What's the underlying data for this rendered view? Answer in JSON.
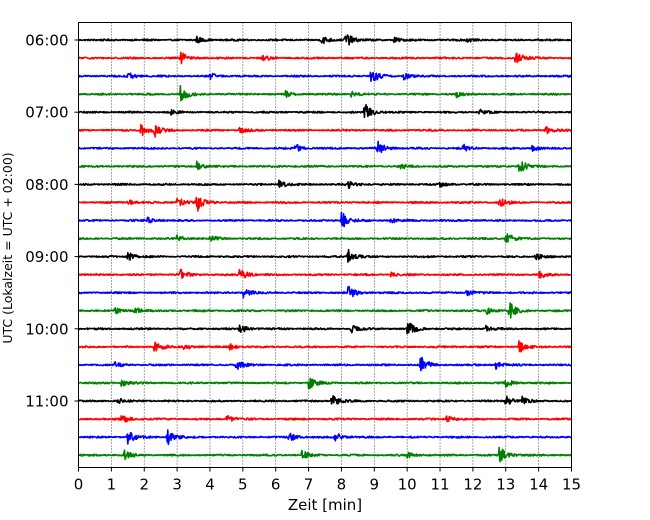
{
  "chart_data": {
    "type": "line",
    "title": "",
    "xlabel": "Zeit  [min]",
    "ylabel": "UTC (Lokalzeit = UTC + 02:00)",
    "xlim": [
      0,
      15
    ],
    "x_ticks": [
      0,
      1,
      2,
      3,
      4,
      5,
      6,
      7,
      8,
      9,
      10,
      11,
      12,
      13,
      14,
      15
    ],
    "x_tick_labels": [
      "0",
      "1",
      "2",
      "3",
      "4",
      "5",
      "6",
      "7",
      "8",
      "9",
      "10",
      "11",
      "12",
      "13",
      "14",
      "15"
    ],
    "grid": "vertical dotted lines at each minute",
    "y_tick_labels": [
      "06:00",
      "07:00",
      "08:00",
      "09:00",
      "10:00",
      "11:00"
    ],
    "trace_interval_min": 15,
    "trace_start": "06:00",
    "trace_colors": [
      "#000000",
      "#ff0000",
      "#0000ff",
      "#008000"
    ],
    "series": [
      {
        "start": "06:00",
        "color": "#000000",
        "events": [
          [
            3.6,
            0.35
          ],
          [
            7.4,
            0.45
          ],
          [
            8.1,
            1.0
          ],
          [
            9.6,
            0.3
          ],
          [
            11.8,
            0.3
          ]
        ]
      },
      {
        "start": "06:15",
        "color": "#ff0000",
        "events": [
          [
            3.1,
            0.7
          ],
          [
            5.6,
            0.3
          ],
          [
            13.3,
            1.0
          ]
        ]
      },
      {
        "start": "06:30",
        "color": "#0000ff",
        "events": [
          [
            1.5,
            0.4
          ],
          [
            4.0,
            0.3
          ],
          [
            8.9,
            0.9
          ],
          [
            9.9,
            0.4
          ]
        ]
      },
      {
        "start": "06:45",
        "color": "#008000",
        "events": [
          [
            3.1,
            0.9
          ],
          [
            6.3,
            0.3
          ],
          [
            8.3,
            0.3
          ],
          [
            11.5,
            0.3
          ]
        ]
      },
      {
        "start": "07:00",
        "color": "#000000",
        "events": [
          [
            2.8,
            0.3
          ],
          [
            8.7,
            1.0
          ],
          [
            12.2,
            0.3
          ]
        ]
      },
      {
        "start": "07:15",
        "color": "#ff0000",
        "events": [
          [
            1.9,
            0.7
          ],
          [
            2.3,
            0.75
          ],
          [
            4.9,
            0.3
          ],
          [
            14.2,
            0.5
          ]
        ]
      },
      {
        "start": "07:30",
        "color": "#0000ff",
        "events": [
          [
            6.6,
            0.5
          ],
          [
            9.1,
            0.8
          ],
          [
            11.7,
            0.4
          ],
          [
            13.8,
            0.3
          ]
        ]
      },
      {
        "start": "07:45",
        "color": "#008000",
        "events": [
          [
            3.6,
            0.5
          ],
          [
            9.8,
            0.3
          ],
          [
            13.4,
            1.0
          ]
        ]
      },
      {
        "start": "08:00",
        "color": "#000000",
        "events": [
          [
            6.1,
            0.45
          ],
          [
            8.2,
            0.6
          ],
          [
            11.0,
            0.3
          ]
        ]
      },
      {
        "start": "08:15",
        "color": "#ff0000",
        "events": [
          [
            1.5,
            0.3
          ],
          [
            3.0,
            0.6
          ],
          [
            3.6,
            1.0
          ],
          [
            12.8,
            0.5
          ]
        ]
      },
      {
        "start": "08:30",
        "color": "#0000ff",
        "events": [
          [
            2.1,
            0.3
          ],
          [
            8.0,
            1.0
          ],
          [
            9.5,
            0.3
          ]
        ]
      },
      {
        "start": "08:45",
        "color": "#008000",
        "events": [
          [
            3.0,
            0.4
          ],
          [
            4.0,
            0.3
          ],
          [
            13.0,
            0.8
          ]
        ]
      },
      {
        "start": "09:00",
        "color": "#000000",
        "events": [
          [
            1.5,
            0.5
          ],
          [
            8.2,
            0.8
          ],
          [
            13.9,
            0.4
          ]
        ]
      },
      {
        "start": "09:15",
        "color": "#ff0000",
        "events": [
          [
            3.1,
            0.6
          ],
          [
            4.9,
            0.75
          ],
          [
            9.5,
            0.4
          ],
          [
            14.0,
            0.5
          ]
        ]
      },
      {
        "start": "09:30",
        "color": "#0000ff",
        "events": [
          [
            5.0,
            0.55
          ],
          [
            8.2,
            0.75
          ],
          [
            11.8,
            0.3
          ]
        ]
      },
      {
        "start": "09:45",
        "color": "#008000",
        "events": [
          [
            1.1,
            0.3
          ],
          [
            1.7,
            0.45
          ],
          [
            12.4,
            0.4
          ],
          [
            13.1,
            1.0
          ]
        ]
      },
      {
        "start": "10:00",
        "color": "#000000",
        "events": [
          [
            4.9,
            0.55
          ],
          [
            8.3,
            0.4
          ],
          [
            10.0,
            1.0
          ],
          [
            12.4,
            0.3
          ]
        ]
      },
      {
        "start": "10:15",
        "color": "#ff0000",
        "events": [
          [
            2.3,
            0.7
          ],
          [
            3.2,
            0.4
          ],
          [
            4.6,
            0.3
          ],
          [
            13.4,
            0.7
          ]
        ]
      },
      {
        "start": "10:30",
        "color": "#0000ff",
        "events": [
          [
            1.1,
            0.3
          ],
          [
            4.8,
            0.55
          ],
          [
            10.4,
            1.0
          ],
          [
            12.7,
            0.4
          ]
        ]
      },
      {
        "start": "10:45",
        "color": "#008000",
        "events": [
          [
            1.3,
            0.4
          ],
          [
            7.0,
            0.7
          ],
          [
            13.0,
            0.4
          ]
        ]
      },
      {
        "start": "11:00",
        "color": "#000000",
        "events": [
          [
            1.2,
            0.3
          ],
          [
            7.7,
            0.8
          ],
          [
            13.0,
            0.6
          ],
          [
            13.5,
            0.4
          ]
        ]
      },
      {
        "start": "11:15",
        "color": "#ff0000",
        "events": [
          [
            1.3,
            0.6
          ],
          [
            4.5,
            0.6
          ],
          [
            11.2,
            0.4
          ]
        ]
      },
      {
        "start": "11:30",
        "color": "#0000ff",
        "events": [
          [
            1.5,
            0.8
          ],
          [
            2.7,
            0.9
          ],
          [
            6.4,
            0.5
          ],
          [
            7.8,
            0.55
          ]
        ]
      },
      {
        "start": "11:45",
        "color": "#008000",
        "events": [
          [
            1.4,
            0.6
          ],
          [
            6.8,
            0.5
          ],
          [
            10.0,
            0.3
          ],
          [
            12.8,
            1.0
          ]
        ]
      }
    ]
  }
}
